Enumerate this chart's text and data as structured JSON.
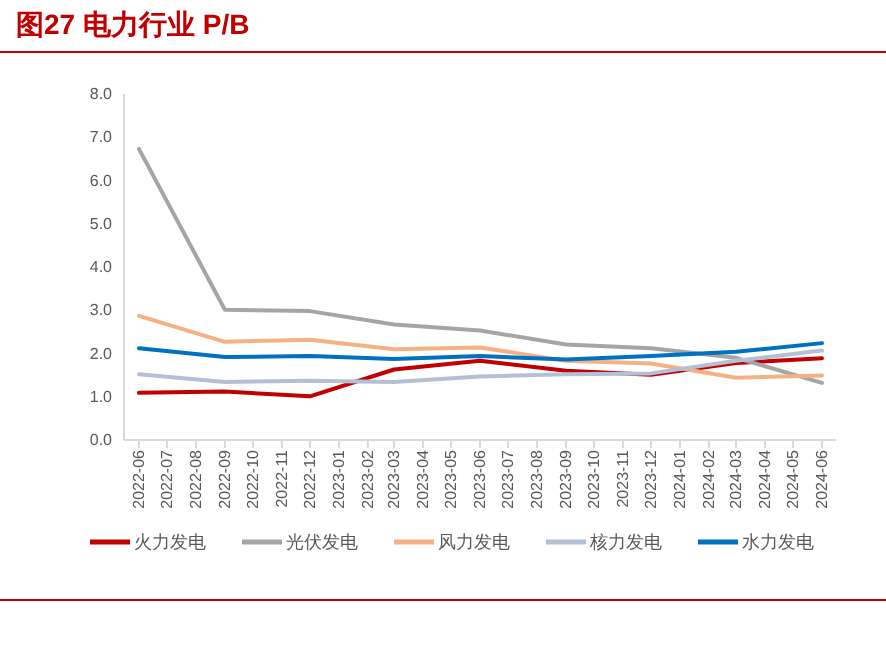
{
  "chart_data": {
    "type": "line",
    "title": "图27 电力行业 P/B",
    "x": [
      "2022-06",
      "2022-09",
      "2022-12",
      "2023-03",
      "2023-06",
      "2023-09",
      "2023-12",
      "2024-03",
      "2024-06"
    ],
    "series": [
      {
        "name": "火力发电",
        "color": "#c00000",
        "values": [
          1.09,
          1.12,
          1.01,
          1.63,
          1.83,
          1.6,
          1.51,
          1.78,
          1.89
        ]
      },
      {
        "name": "光伏发电",
        "color": "#a5a5a5",
        "values": [
          6.73,
          3.01,
          2.98,
          2.67,
          2.53,
          2.21,
          2.12,
          1.9,
          1.32
        ]
      },
      {
        "name": "风力发电",
        "color": "#f4b183",
        "values": [
          2.87,
          2.27,
          2.32,
          2.1,
          2.14,
          1.83,
          1.77,
          1.44,
          1.49
        ]
      },
      {
        "name": "核力发电",
        "color": "#b4c0d6",
        "values": [
          1.52,
          1.34,
          1.37,
          1.34,
          1.47,
          1.52,
          1.54,
          1.83,
          2.07
        ]
      },
      {
        "name": "水力发电",
        "color": "#0070c0",
        "values": [
          2.12,
          1.92,
          1.94,
          1.87,
          1.94,
          1.86,
          1.94,
          2.04,
          2.24
        ]
      }
    ],
    "xlim": [
      "2022-05-16",
      "2024-06-16"
    ],
    "xticks": [
      "2022-06",
      "2022-07",
      "2022-08",
      "2022-09",
      "2022-10",
      "2022-11",
      "2022-12",
      "2023-01",
      "2023-02",
      "2023-03",
      "2023-04",
      "2023-05",
      "2023-06",
      "2023-07",
      "2023-08",
      "2023-09",
      "2023-10",
      "2023-11",
      "2023-12",
      "2024-01",
      "2024-02",
      "2024-03",
      "2024-04",
      "2024-05",
      "2024-06"
    ],
    "ylim": [
      0,
      8
    ],
    "yticks": [
      {
        "value": 0,
        "label": "0.0"
      },
      {
        "value": 1,
        "label": "1.0"
      },
      {
        "value": 2,
        "label": "2.0"
      },
      {
        "value": 3,
        "label": "3.0"
      },
      {
        "value": 4,
        "label": "4.0"
      },
      {
        "value": 5,
        "label": "5.0"
      },
      {
        "value": 6,
        "label": "6.0"
      },
      {
        "value": 7,
        "label": "7.0"
      },
      {
        "value": 8,
        "label": "8.0"
      }
    ],
    "legend": "bottom",
    "grid": false
  }
}
